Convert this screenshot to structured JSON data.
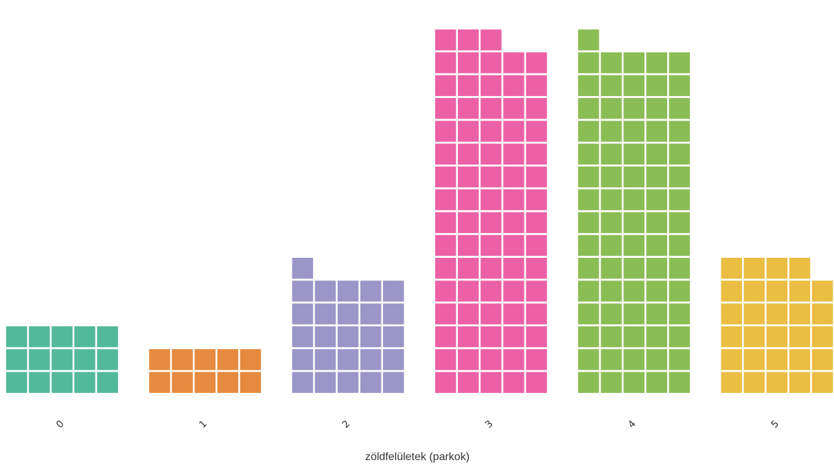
{
  "chart_data": {
    "type": "waffle",
    "xlabel": "zöldfelületek (parkok)",
    "ylabel": "",
    "units_per_column": 5,
    "categories": [
      "0",
      "1",
      "2",
      "3",
      "4",
      "5"
    ],
    "values": [
      15,
      10,
      26,
      78,
      76,
      29
    ],
    "colors": [
      "#52b99a",
      "#e58a3e",
      "#9b96c8",
      "#ec61a6",
      "#8bbd55",
      "#eabe42"
    ],
    "grid": false,
    "legend": "none"
  }
}
